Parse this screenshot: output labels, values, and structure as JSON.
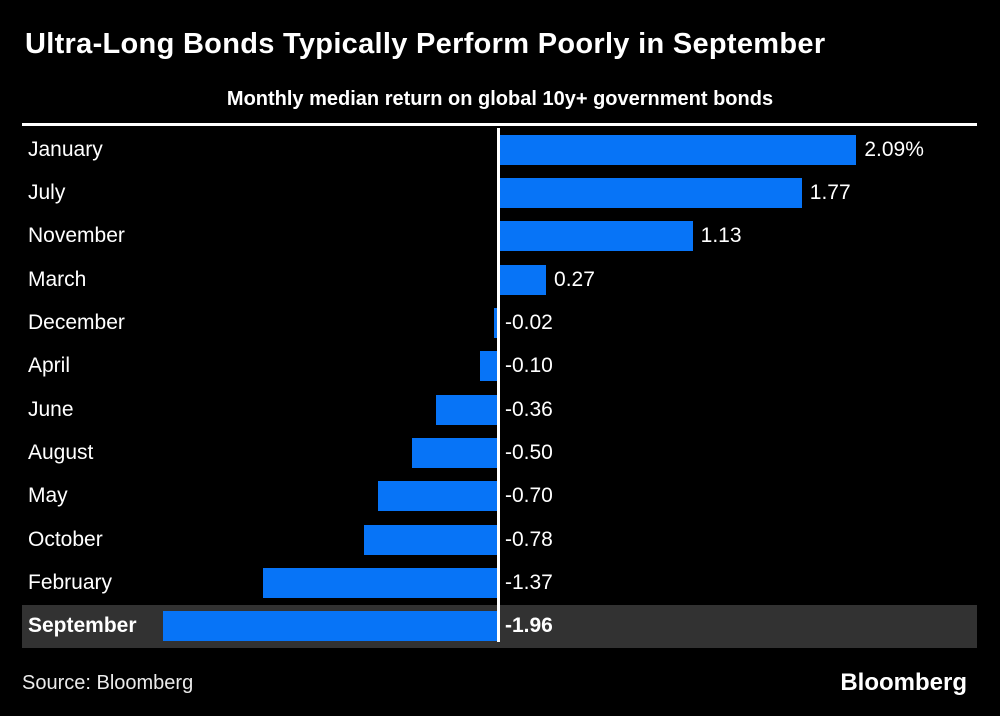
{
  "header": {
    "title": "Ultra-Long Bonds Typically Perform Poorly in September",
    "subtitle": "Monthly median return on global 10y+ government bonds"
  },
  "chart_data": {
    "type": "bar",
    "orientation": "horizontal",
    "title": "Ultra-Long Bonds Typically Perform Poorly in September",
    "subtitle": "Monthly median return on global 10y+ government bonds",
    "xlabel": "",
    "ylabel": "",
    "categories": [
      "January",
      "July",
      "November",
      "March",
      "December",
      "April",
      "June",
      "August",
      "May",
      "October",
      "February",
      "September"
    ],
    "values": [
      2.09,
      1.77,
      1.13,
      0.27,
      -0.02,
      -0.1,
      -0.36,
      -0.5,
      -0.7,
      -0.78,
      -1.37,
      -1.96
    ],
    "value_labels": [
      "2.09%",
      "1.77",
      "1.13",
      "0.27",
      "-0.02",
      "-0.10",
      "-0.36",
      "-0.50",
      "-0.70",
      "-0.78",
      "-1.37",
      "-1.96"
    ],
    "unit": "percent",
    "highlighted_category": "September",
    "xlim": [
      -2.9,
      2.95
    ],
    "grid": false,
    "legend": false,
    "bar_color": "#0774f7",
    "highlight_row_color": "#323232",
    "zero_axis_color": "#ffffff",
    "text_color": "#ffffff",
    "background_color": "#000000"
  },
  "footer": {
    "source": "Source: Bloomberg",
    "logo": "Bloomberg"
  }
}
